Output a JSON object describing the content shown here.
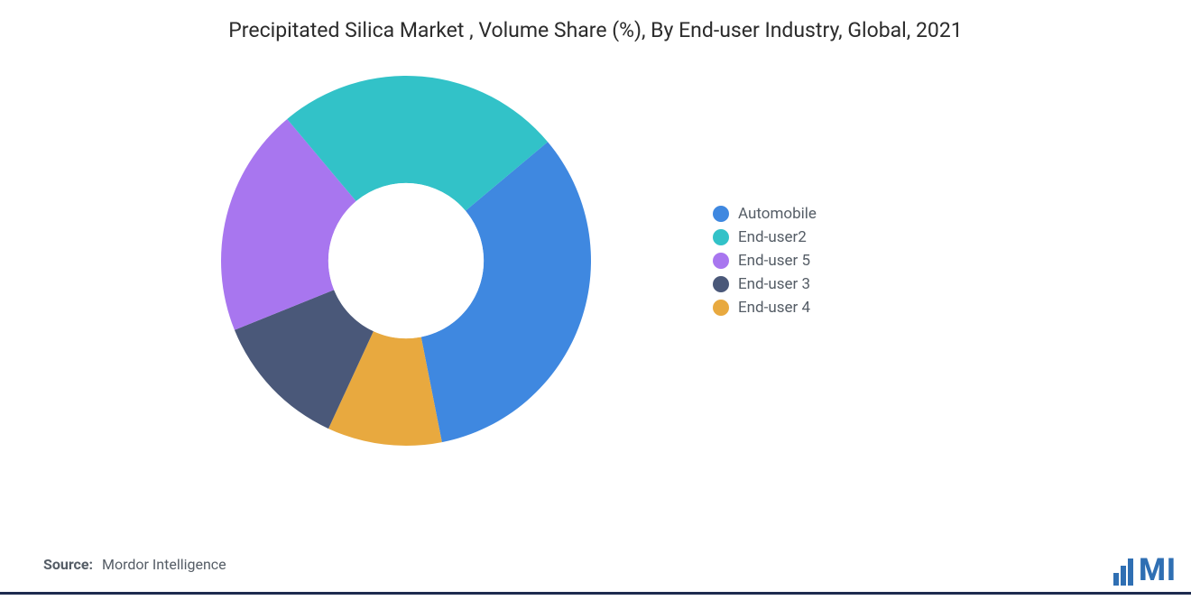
{
  "title": "Precipitated Silica Market , Volume Share (%), By End-user Industry, Global, 2021",
  "source_label": "Source:",
  "source_value": "Mordor Intelligence",
  "logo_text": "MI",
  "logo_color": "#2f6fb3",
  "chart": {
    "type": "donut",
    "inner_radius_ratio": 0.42,
    "start_angle_deg": -40,
    "direction": "clockwise",
    "background_color": "#ffffff",
    "slices": [
      {
        "label": "Automobile",
        "value": 33,
        "color": "#3f88e0"
      },
      {
        "label": "End-user2",
        "value": 25,
        "color": "#32c2c8"
      },
      {
        "label": "End-user 5",
        "value": 20,
        "color": "#a876ef"
      },
      {
        "label": "End-user 3",
        "value": 12,
        "color": "#4a5879"
      },
      {
        "label": "End-user 4",
        "value": 10,
        "color": "#e8a93f"
      }
    ],
    "legend_font_size": 17,
    "legend_color": "#555d66",
    "title_font_size": 23,
    "title_color": "#2b2b2b"
  }
}
